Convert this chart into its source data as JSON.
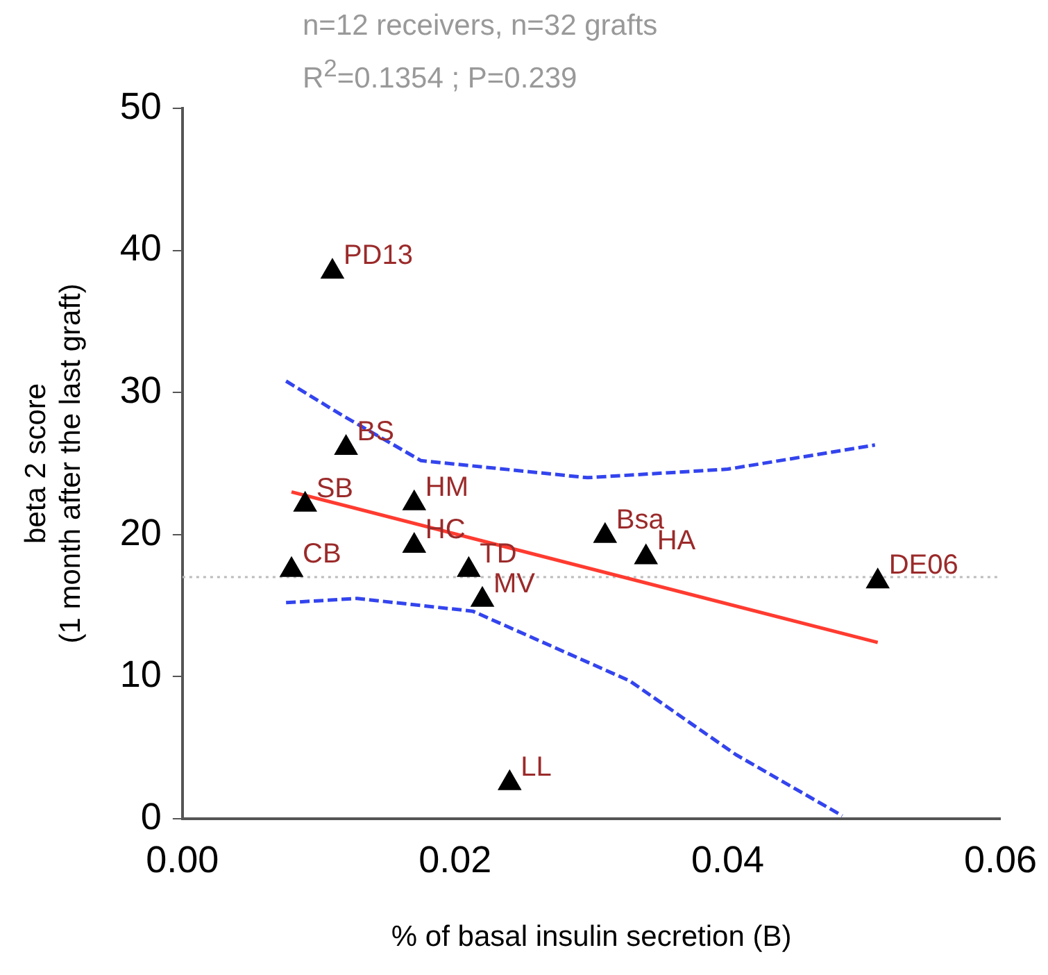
{
  "chart_data": {
    "type": "scatter",
    "xlabel": "% of basal insulin secretion (B)",
    "ylabel": "beta 2 score\n(1 month after the last graft)",
    "annotations": [
      "n=12 receivers, n=32 grafts",
      "R$^{2}$=0.1354 ; P=0.239"
    ],
    "series": [
      {
        "marker": "triangle",
        "color": "#000000",
        "x": [
          0.011,
          0.012,
          0.009,
          0.017,
          0.017,
          0.008,
          0.021,
          0.022,
          0.031,
          0.034,
          0.051,
          0.024
        ],
        "values": [
          38.5,
          26.1,
          22.1,
          22.2,
          19.2,
          17.5,
          17.5,
          15.4,
          19.9,
          18.4,
          16.7,
          2.5
        ],
        "value_labels": [
          "PD13",
          "BS",
          "SB",
          "HM",
          "HC",
          "CB",
          "TD",
          "MV",
          "Bsa",
          "HA",
          "DE06",
          "LL"
        ]
      },
      {
        "type": "line",
        "marker": "none",
        "color": "#ff3b30",
        "line_style": "solid",
        "x": [
          0.008,
          0.051
        ],
        "values": [
          23.0,
          12.4
        ]
      },
      {
        "type": "line",
        "marker": "none",
        "color": "#3344ee",
        "line_style": "dashed",
        "x": [
          0.0076,
          0.0117,
          0.0175,
          0.0297,
          0.04,
          0.0508
        ],
        "values": [
          30.8,
          28.4,
          25.2,
          24.0,
          24.6,
          26.3
        ]
      },
      {
        "type": "line",
        "marker": "none",
        "color": "#3344ee",
        "line_style": "dashed",
        "x": [
          0.0076,
          0.0128,
          0.0213,
          0.0328,
          0.0406,
          0.0484
        ],
        "values": [
          15.2,
          15.5,
          14.6,
          9.7,
          4.5,
          0.2
        ]
      }
    ],
    "ref_lines": [
      {
        "axis": "y",
        "value": 17,
        "color": "#bbbbbb",
        "line_style": "dotted"
      }
    ],
    "grid": false,
    "legend": false,
    "xlim": [
      0,
      0.06
    ],
    "xticks": [
      {
        "value": 0,
        "label": "0.00"
      },
      {
        "value": 0.02,
        "label": "0.02"
      },
      {
        "value": 0.04,
        "label": "0.04"
      },
      {
        "value": 0.06,
        "label": "0.06"
      }
    ],
    "ylim": [
      0,
      50
    ],
    "yticks": [
      0,
      10,
      20,
      30,
      40,
      50
    ]
  }
}
